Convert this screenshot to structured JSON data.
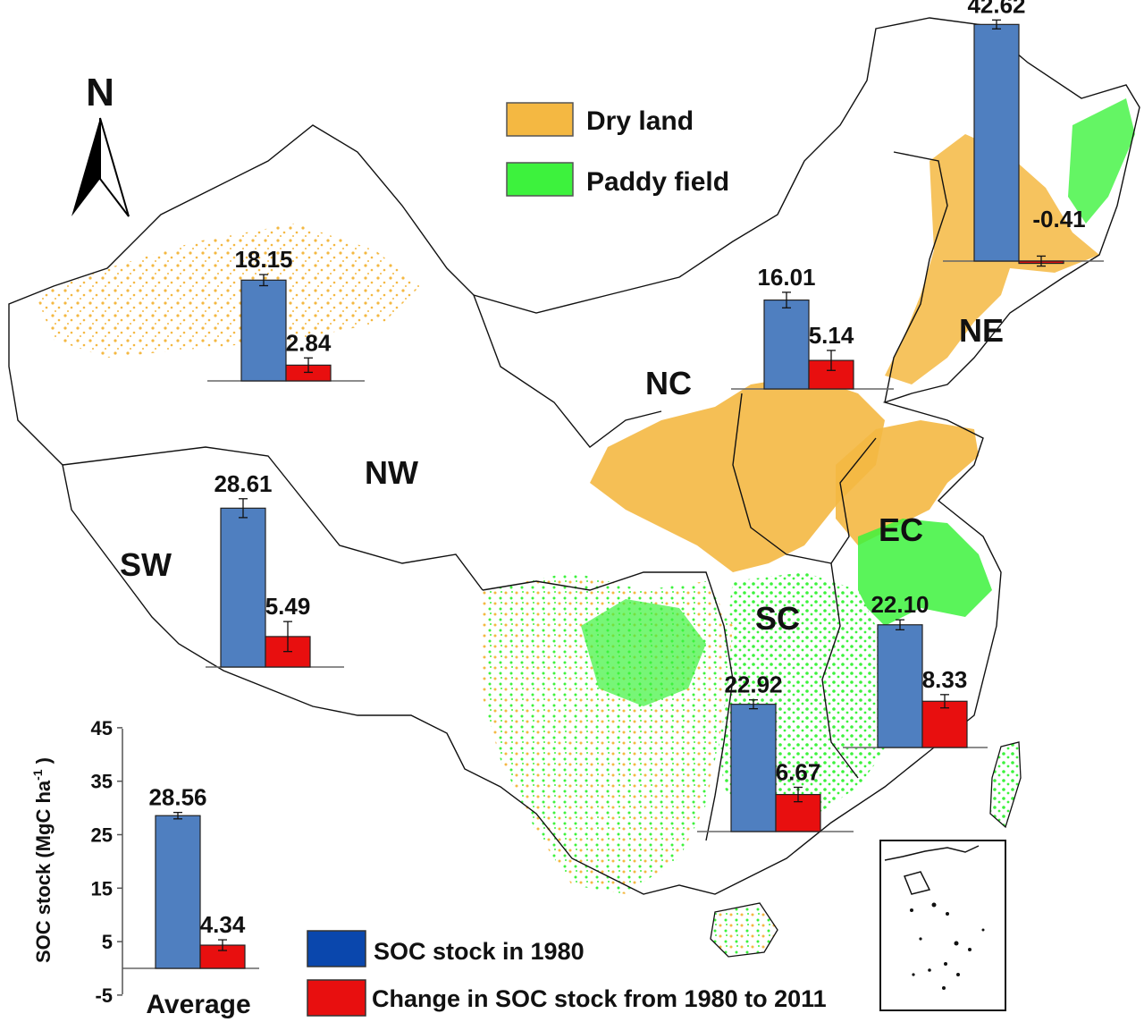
{
  "north_label": "N",
  "colors": {
    "dry_land": "#f4b842",
    "paddy_field": "#3df23d",
    "soc_1980": "#4f7fc0",
    "soc_change": "#e80f0f",
    "negative_tick": "#e81010",
    "boundary": "#111111"
  },
  "legend_landuse": {
    "dry_land": "Dry land",
    "paddy_field": "Paddy field"
  },
  "legend_soc": {
    "soc_1980": "SOC stock in 1980",
    "soc_change": "Change in SOC stock from 1980 to 2011"
  },
  "regions": [
    {
      "code": "NE"
    },
    {
      "code": "NC"
    },
    {
      "code": "NW"
    },
    {
      "code": "SW"
    },
    {
      "code": "EC"
    },
    {
      "code": "SC"
    }
  ],
  "chart_data": [
    {
      "type": "bar",
      "region": "NE",
      "categories": [
        "SOC stock in 1980",
        "Change in SOC stock from 1980 to 2011"
      ],
      "values": [
        42.62,
        -0.41
      ],
      "labels": [
        "42.62",
        "-0.41"
      ],
      "errors": [
        0.8,
        0.9
      ]
    },
    {
      "type": "bar",
      "region": "NC",
      "categories": [
        "SOC stock in 1980",
        "Change in SOC stock from 1980 to 2011"
      ],
      "values": [
        16.01,
        5.14
      ],
      "labels": [
        "16.01",
        "5.14"
      ],
      "errors": [
        1.4,
        1.8
      ]
    },
    {
      "type": "bar",
      "region": "NW",
      "categories": [
        "SOC stock in 1980",
        "Change in SOC stock from 1980 to 2011"
      ],
      "values": [
        18.15,
        2.84
      ],
      "labels": [
        "18.15",
        "2.84"
      ],
      "errors": [
        1.0,
        1.3
      ]
    },
    {
      "type": "bar",
      "region": "SW",
      "categories": [
        "SOC stock in 1980",
        "Change in SOC stock from 1980 to 2011"
      ],
      "values": [
        28.61,
        5.49
      ],
      "labels": [
        "28.61",
        "5.49"
      ],
      "errors": [
        1.7,
        2.7
      ]
    },
    {
      "type": "bar",
      "region": "EC",
      "categories": [
        "SOC stock in 1980",
        "Change in SOC stock from 1980 to 2011"
      ],
      "values": [
        22.1,
        8.33
      ],
      "labels": [
        "22.10",
        "8.33"
      ],
      "errors": [
        0.9,
        1.2
      ]
    },
    {
      "type": "bar",
      "region": "SC",
      "categories": [
        "SOC stock in 1980",
        "Change in SOC stock from 1980 to 2011"
      ],
      "values": [
        22.92,
        6.67
      ],
      "labels": [
        "22.92",
        "6.67"
      ],
      "errors": [
        0.8,
        1.3
      ]
    },
    {
      "type": "bar",
      "region": "Average",
      "categories": [
        "SOC stock in 1980",
        "Change in SOC stock from 1980 to 2011"
      ],
      "values": [
        28.56,
        4.34
      ],
      "labels": [
        "28.56",
        "4.34"
      ],
      "errors": [
        0.6,
        1.0
      ],
      "xlabel": "Average",
      "ylabel": "SOC stock (MgC ha",
      "ylabel_sup": "-1",
      "ylabel_end": " )",
      "ylim": [
        -5,
        45
      ],
      "yticks": [
        45,
        35,
        25,
        15,
        5,
        -5
      ],
      "ytick_labels": [
        "45",
        "35",
        "25",
        "15",
        "5",
        "-5"
      ]
    }
  ]
}
